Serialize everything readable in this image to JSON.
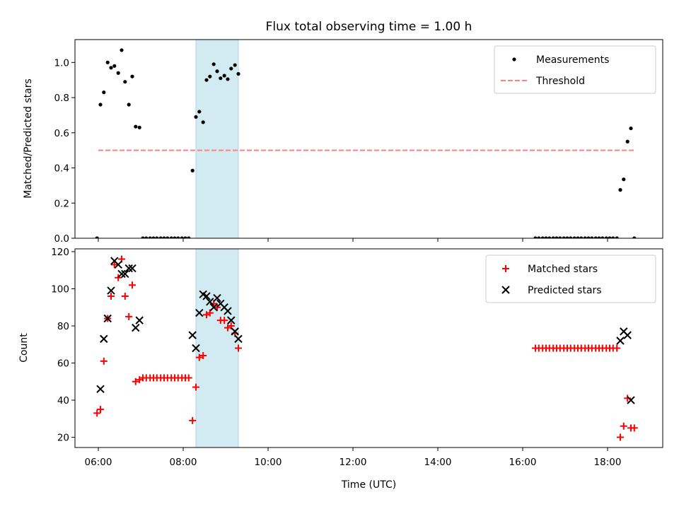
{
  "title": "Flux total observing time = 1.00 h",
  "colors": {
    "measurement": "#000000",
    "threshold": "#ff8080",
    "matched": "#ff0000",
    "predicted": "#000000",
    "highlight": "#add8e6"
  },
  "chart_data": [
    {
      "type": "scatter",
      "ylabel": "Matched/Predicted stars",
      "xlabel": "",
      "xlim": [
        5.45,
        19.3
      ],
      "ylim": [
        0,
        1.13
      ],
      "yticks": [
        0.0,
        0.2,
        0.4,
        0.6,
        0.8,
        1.0
      ],
      "ytick_labels": [
        "0.0",
        "0.2",
        "0.4",
        "0.6",
        "0.8",
        "1.0"
      ],
      "xticks": [
        6,
        8,
        10,
        12,
        14,
        16,
        18
      ],
      "shaded_span": [
        8.3,
        9.3
      ],
      "legend_position": "upper right",
      "legend": [
        {
          "label": "Measurements",
          "marker": "dot"
        },
        {
          "label": "Threshold",
          "marker": "dashed-line"
        }
      ],
      "threshold": {
        "value": 0.5,
        "x_range": [
          6.0,
          18.65
        ]
      },
      "series": [
        {
          "name": "Measurements",
          "x": [
            5.97,
            6.05,
            6.13,
            6.22,
            6.3,
            6.38,
            6.47,
            6.55,
            6.63,
            6.72,
            6.8,
            6.88,
            6.97,
            7.05,
            7.13,
            7.22,
            7.3,
            7.38,
            7.47,
            7.55,
            7.63,
            7.72,
            7.8,
            7.88,
            7.97,
            8.05,
            8.13,
            8.22,
            8.3,
            8.38,
            8.47,
            8.55,
            8.63,
            8.72,
            8.8,
            8.88,
            8.97,
            9.05,
            9.13,
            9.22,
            9.3,
            16.3,
            16.38,
            16.47,
            16.55,
            16.63,
            16.72,
            16.8,
            16.88,
            16.97,
            17.05,
            17.13,
            17.22,
            17.3,
            17.38,
            17.47,
            17.55,
            17.63,
            17.72,
            17.8,
            17.88,
            17.97,
            18.05,
            18.13,
            18.22,
            18.3,
            18.38,
            18.47,
            18.55,
            18.63
          ],
          "y": [
            0.0,
            0.76,
            0.83,
            1.0,
            0.97,
            0.98,
            0.94,
            1.07,
            0.89,
            0.76,
            0.92,
            0.635,
            0.63,
            0.0,
            0.0,
            0.0,
            0.0,
            0.0,
            0.0,
            0.0,
            0.0,
            0.0,
            0.0,
            0.0,
            0.0,
            0.0,
            0.0,
            0.385,
            0.69,
            0.72,
            0.66,
            0.9,
            0.92,
            0.99,
            0.95,
            0.91,
            0.925,
            0.905,
            0.965,
            0.985,
            0.935,
            0.0,
            0.0,
            0.0,
            0.0,
            0.0,
            0.0,
            0.0,
            0.0,
            0.0,
            0.0,
            0.0,
            0.0,
            0.0,
            0.0,
            0.0,
            0.0,
            0.0,
            0.0,
            0.0,
            0.0,
            0.0,
            0.0,
            0.0,
            0.0,
            0.275,
            0.335,
            0.55,
            0.625,
            0.0
          ]
        }
      ]
    },
    {
      "type": "scatter",
      "ylabel": "Count",
      "xlabel": "Time (UTC)",
      "xlim": [
        5.45,
        19.3
      ],
      "ylim": [
        14.5,
        121.5
      ],
      "yticks": [
        20,
        40,
        60,
        80,
        100,
        120
      ],
      "ytick_labels": [
        "20",
        "40",
        "60",
        "80",
        "100",
        "120"
      ],
      "xticks": [
        6,
        8,
        10,
        12,
        14,
        16,
        18
      ],
      "xtick_labels": [
        "06:00",
        "08:00",
        "10:00",
        "12:00",
        "14:00",
        "16:00",
        "18:00"
      ],
      "shaded_span": [
        8.3,
        9.3
      ],
      "legend_position": "upper right",
      "legend": [
        {
          "label": "Matched stars",
          "marker": "plus"
        },
        {
          "label": "Predicted stars",
          "marker": "x"
        }
      ],
      "series": [
        {
          "name": "Matched stars",
          "x": [
            5.97,
            6.05,
            6.13,
            6.22,
            6.3,
            6.38,
            6.47,
            6.55,
            6.63,
            6.72,
            6.8,
            6.88,
            6.97,
            7.05,
            7.13,
            7.22,
            7.3,
            7.38,
            7.47,
            7.55,
            7.63,
            7.72,
            7.8,
            7.88,
            7.97,
            8.05,
            8.13,
            8.22,
            8.3,
            8.38,
            8.47,
            8.55,
            8.63,
            8.72,
            8.8,
            8.88,
            8.97,
            9.05,
            9.13,
            9.22,
            9.3,
            16.3,
            16.38,
            16.47,
            16.55,
            16.63,
            16.72,
            16.8,
            16.88,
            16.97,
            17.05,
            17.13,
            17.22,
            17.3,
            17.38,
            17.47,
            17.55,
            17.63,
            17.72,
            17.8,
            17.88,
            17.97,
            18.05,
            18.13,
            18.22,
            18.3,
            18.38,
            18.47,
            18.55,
            18.63
          ],
          "y": [
            33,
            35,
            61,
            84,
            96,
            113,
            106,
            116,
            96,
            85,
            102,
            50,
            51,
            52,
            52,
            52,
            52,
            52,
            52,
            52,
            52,
            52,
            52,
            52,
            52,
            52,
            52,
            29,
            47,
            63,
            64,
            86,
            87,
            92,
            90,
            83,
            83,
            79,
            80,
            76,
            68,
            68,
            68,
            68,
            68,
            68,
            68,
            68,
            68,
            68,
            68,
            68,
            68,
            68,
            68,
            68,
            68,
            68,
            68,
            68,
            68,
            68,
            68,
            68,
            68,
            20,
            26,
            41,
            25,
            25
          ]
        },
        {
          "name": "Predicted stars",
          "x": [
            6.05,
            6.13,
            6.22,
            6.3,
            6.38,
            6.47,
            6.55,
            6.63,
            6.72,
            6.8,
            6.88,
            6.97,
            8.22,
            8.3,
            8.38,
            8.47,
            8.55,
            8.63,
            8.72,
            8.8,
            8.88,
            8.97,
            9.05,
            9.13,
            9.22,
            9.3,
            18.3,
            18.38,
            18.47,
            18.55
          ],
          "y": [
            46,
            73,
            84,
            99,
            115,
            113,
            108,
            108,
            111,
            111,
            79,
            83,
            75,
            68,
            87,
            97,
            96,
            93,
            90,
            95,
            92,
            90,
            88,
            83,
            77,
            73,
            72,
            77,
            75,
            40
          ]
        }
      ]
    }
  ]
}
